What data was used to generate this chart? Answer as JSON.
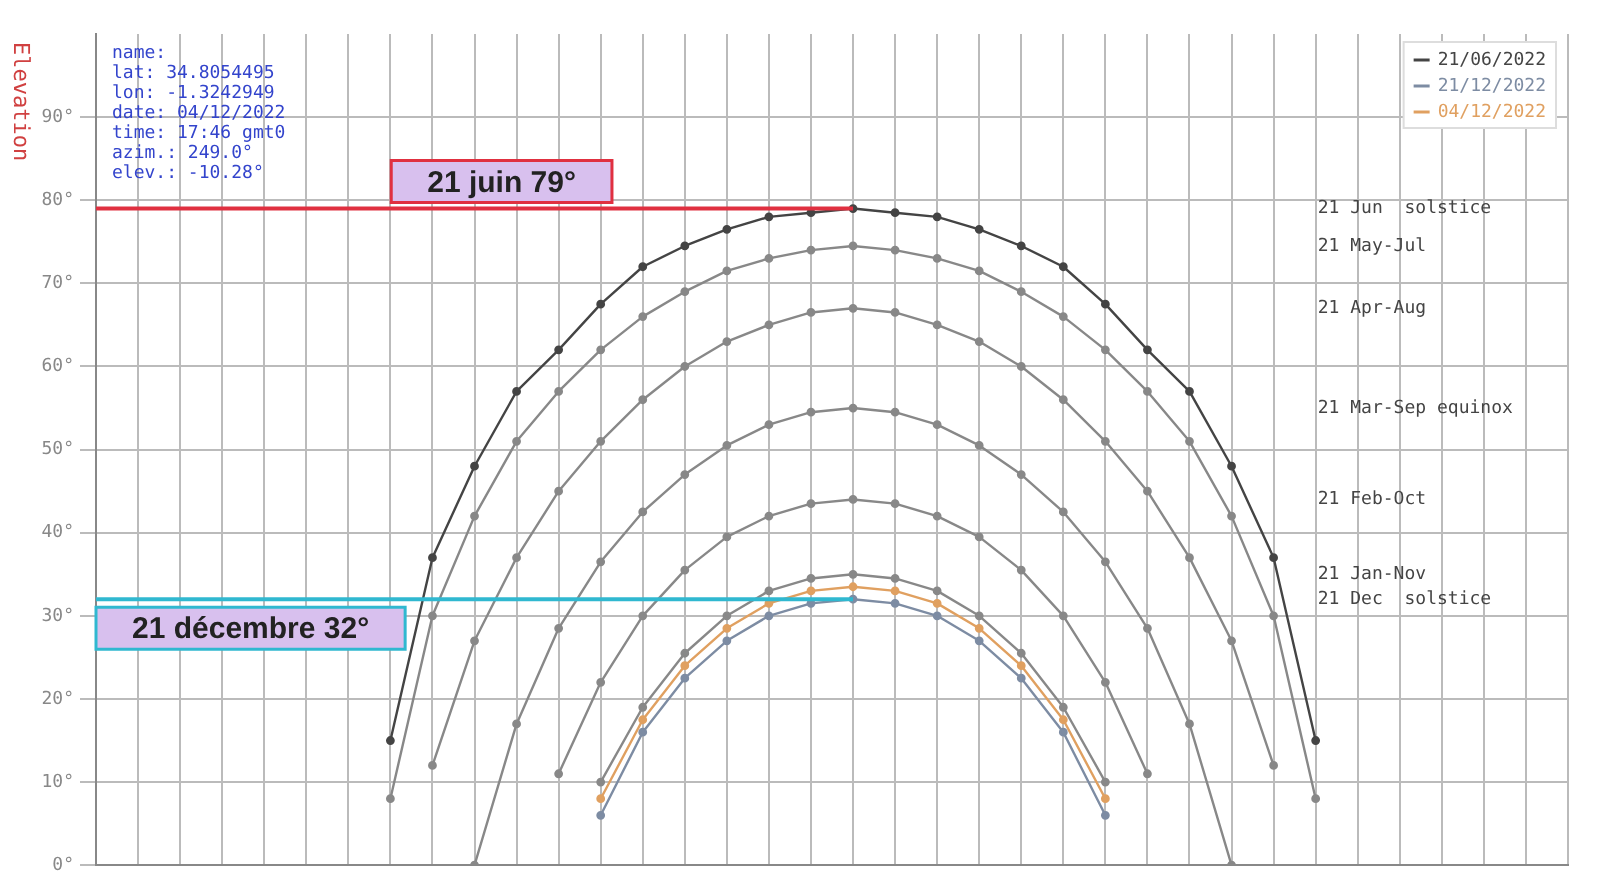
{
  "chart_data": {
    "type": "line",
    "ylabel": "Elevation",
    "categories": [
      null,
      null,
      null,
      null,
      null,
      null,
      null,
      null,
      null,
      null,
      null,
      null,
      null,
      null,
      null,
      null,
      null,
      null,
      null,
      null,
      null,
      null,
      null,
      null,
      null,
      null,
      null,
      null,
      null,
      null,
      null,
      null,
      null,
      null,
      null,
      null
    ],
    "series": [
      {
        "name": "21/06/2022",
        "color": "#444444",
        "values": [
          null,
          null,
          null,
          null,
          null,
          null,
          null,
          15,
          37,
          48,
          57,
          62,
          67.5,
          72,
          74.5,
          76.5,
          78,
          78.5,
          79,
          78.5,
          78,
          76.5,
          74.5,
          72,
          67.5,
          62,
          57,
          48,
          37,
          15,
          null,
          null,
          null,
          null,
          null,
          null
        ]
      },
      {
        "color": "#888888",
        "values": [
          null,
          null,
          null,
          null,
          null,
          null,
          null,
          8,
          30,
          42,
          51,
          57,
          62,
          66,
          69,
          71.5,
          73,
          74,
          74.5,
          74,
          73,
          71.5,
          69,
          66,
          62,
          57,
          51,
          42,
          30,
          8,
          null,
          null,
          null,
          null,
          null,
          null
        ]
      },
      {
        "color": "#888888",
        "values": [
          null,
          null,
          null,
          null,
          null,
          null,
          null,
          null,
          12,
          27,
          37,
          45,
          51,
          56,
          60,
          63,
          65,
          66.5,
          67,
          66.5,
          65,
          63,
          60,
          56,
          51,
          45,
          37,
          27,
          12,
          null,
          null,
          null,
          null,
          null,
          null,
          null
        ]
      },
      {
        "color": "#888888",
        "values": [
          null,
          null,
          null,
          null,
          null,
          null,
          null,
          null,
          null,
          0,
          17,
          28.5,
          36.5,
          42.5,
          47,
          50.5,
          53,
          54.5,
          55,
          54.5,
          53,
          50.5,
          47,
          42.5,
          36.5,
          28.5,
          17,
          0,
          null,
          null,
          null,
          null,
          null,
          null,
          null,
          null
        ]
      },
      {
        "color": "#888888",
        "values": [
          null,
          null,
          null,
          null,
          null,
          null,
          null,
          null,
          null,
          null,
          null,
          11,
          22,
          30,
          35.5,
          39.5,
          42,
          43.5,
          44,
          43.5,
          42,
          39.5,
          35.5,
          30,
          22,
          11,
          null,
          null,
          null,
          null,
          null,
          null,
          null,
          null,
          null,
          null
        ]
      },
      {
        "color": "#888888",
        "values": [
          null,
          null,
          null,
          null,
          null,
          null,
          null,
          null,
          null,
          null,
          null,
          null,
          10,
          19,
          25.5,
          30,
          33,
          34.5,
          35,
          34.5,
          33,
          30,
          25.5,
          19,
          10,
          null,
          null,
          null,
          null,
          null,
          null,
          null,
          null,
          null,
          null,
          null
        ]
      },
      {
        "name": "21/12/2022",
        "color": "#7d8ca3",
        "values": [
          null,
          null,
          null,
          null,
          null,
          null,
          null,
          null,
          null,
          null,
          null,
          null,
          6,
          16,
          22.5,
          27,
          30,
          31.5,
          32,
          31.5,
          30,
          27,
          22.5,
          16,
          6,
          null,
          null,
          null,
          null,
          null,
          null,
          null,
          null,
          null,
          null,
          null
        ]
      },
      {
        "name": "04/12/2022",
        "color": "#e0a060",
        "values": [
          null,
          null,
          null,
          null,
          null,
          null,
          null,
          null,
          null,
          null,
          null,
          null,
          8,
          17.5,
          24,
          28.5,
          31.5,
          33,
          33.5,
          33,
          31.5,
          28.5,
          24,
          17.5,
          8,
          null,
          null,
          null,
          null,
          null,
          null,
          null,
          null,
          null,
          null,
          null
        ]
      }
    ],
    "ylim": [
      0,
      100
    ],
    "yticks": [
      {
        "value": 0,
        "label": "0°"
      },
      {
        "value": 10,
        "label": "10°"
      },
      {
        "value": 20,
        "label": "20°"
      },
      {
        "value": 30,
        "label": "30°"
      },
      {
        "value": 40,
        "label": "40°"
      },
      {
        "value": 50,
        "label": "50°"
      },
      {
        "value": 60,
        "label": "60°"
      },
      {
        "value": 70,
        "label": "70°"
      },
      {
        "value": 80,
        "label": "80°"
      },
      {
        "value": 90,
        "label": "90°"
      }
    ],
    "ref_lines": [
      {
        "axis": "y",
        "value": 79,
        "label": "21 juin 79°",
        "color": "#e03040"
      },
      {
        "axis": "y",
        "value": 32,
        "label": "21 décembre 32°",
        "color": "#30b8d0"
      }
    ],
    "annotations": [
      "name:",
      "lat: 34.8054495",
      "lon: -1.3242949",
      "date: 04/12/2022",
      "time: 17:46 gmt0",
      "azim.: 249.0°",
      "elev.: -10.28°",
      "21 Jun  solstice",
      "21 May-Jul",
      "21 Apr-Aug",
      "21 Mar-Sep equinox",
      "21 Feb-Oct",
      "21 Jan-Nov",
      "21 Dec  solstice"
    ],
    "grid": true,
    "legend": "top right",
    "marker": "circle",
    "line_style": "solid",
    "tick_labels": "y"
  }
}
